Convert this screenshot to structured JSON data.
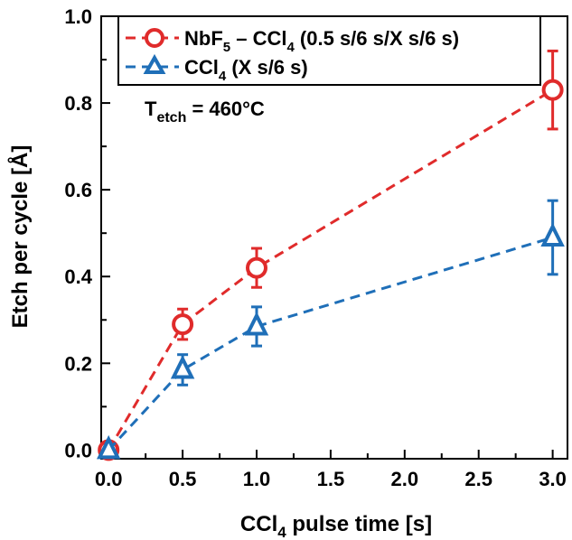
{
  "chart_data": {
    "type": "line",
    "xlabel": "CCl",
    "xlabel_sub": "4",
    "xlabel_rest": " pulse time [s]",
    "ylabel": "Etch per cycle [Å]",
    "xlim": [
      -0.05,
      3.1
    ],
    "ylim": [
      -0.02,
      1.0
    ],
    "x_ticks": [
      0.0,
      0.5,
      1.0,
      1.5,
      2.0,
      2.5,
      3.0
    ],
    "x_tick_labels": [
      "0.0",
      "0.5",
      "1.0",
      "1.5",
      "2.0",
      "2.5",
      "3.0"
    ],
    "y_ticks": [
      0.0,
      0.2,
      0.4,
      0.6,
      0.8,
      1.0
    ],
    "y_tick_labels": [
      "0.0",
      "0.2",
      "0.4",
      "0.6",
      "0.8",
      "1.0"
    ],
    "grid": false,
    "legend_position": "top-left",
    "annotation": {
      "main": "T",
      "sub": "etch",
      "rest": " = 460°C"
    },
    "series": [
      {
        "name": "NbF5 – CCl4 (0.5 s/6 s/X s/6 s)",
        "legend_parts": {
          "a": "NbF",
          "a_sub": "5",
          "b": " – CCl",
          "b_sub": "4",
          "c": " (0.5 s/6 s/X s/6 s)"
        },
        "color": "#e02b2b",
        "marker": "circle",
        "x": [
          0.0,
          0.5,
          1.0,
          3.0
        ],
        "y": [
          0.0,
          0.29,
          0.42,
          0.83
        ],
        "err": [
          0.0,
          0.035,
          0.045,
          0.09
        ]
      },
      {
        "name": "CCl4 (X s/6 s)",
        "legend_parts": {
          "a": "CCl",
          "a_sub": "4",
          "b": " (X s/6 s)"
        },
        "color": "#1f6fb8",
        "marker": "triangle",
        "x": [
          0.0,
          0.5,
          1.0,
          3.0
        ],
        "y": [
          0.0,
          0.185,
          0.285,
          0.49
        ],
        "err": [
          0.0,
          0.035,
          0.045,
          0.085
        ]
      }
    ]
  }
}
